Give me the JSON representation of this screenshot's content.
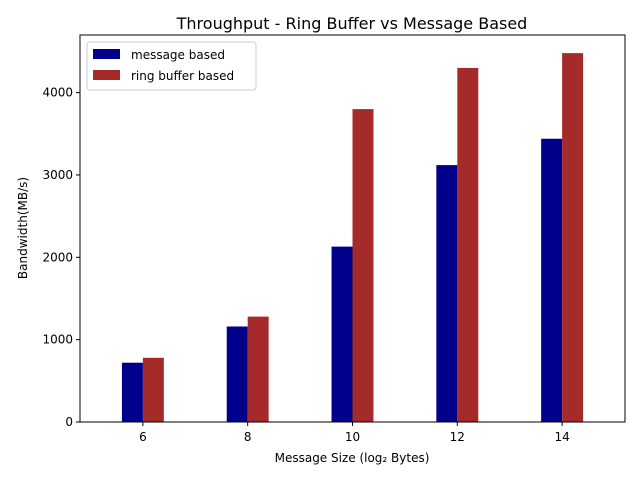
{
  "chart_data": {
    "type": "bar",
    "title": "Throughput - Ring Buffer vs Message Based",
    "xlabel": "Message Size (log₂ Bytes)",
    "ylabel": "Bandwidth(MB/s)",
    "categories": [
      "6",
      "8",
      "10",
      "12",
      "14"
    ],
    "series": [
      {
        "name": "message based",
        "color": "#00008b",
        "values": [
          720,
          1160,
          2130,
          3120,
          3440
        ]
      },
      {
        "name": "ring buffer based",
        "color": "#a52a2a",
        "values": [
          780,
          1280,
          3800,
          4300,
          4480
        ]
      }
    ],
    "ylim": [
      0,
      4700
    ],
    "yticks": [
      0,
      1000,
      2000,
      3000,
      4000
    ],
    "grid": false,
    "legend_position": "top-left"
  }
}
